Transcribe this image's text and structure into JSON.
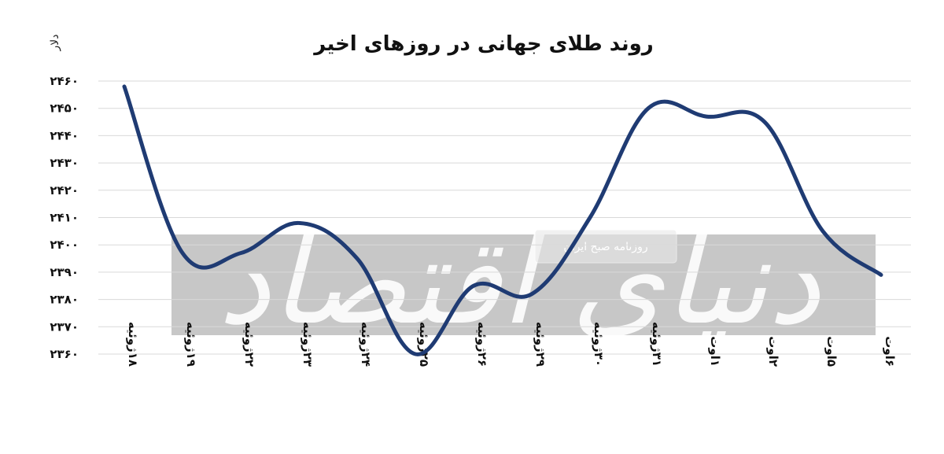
{
  "chart_data": {
    "type": "line",
    "title": "روند طلای جهانی در روزهای اخیر",
    "ylabel": "دلار",
    "xlabel": "",
    "ylim": [
      2360,
      2460
    ],
    "yticks": [
      "۲۳۶۰",
      "۲۳۷۰",
      "۲۳۸۰",
      "۲۳۹۰",
      "۲۴۰۰",
      "۲۴۱۰",
      "۲۴۲۰",
      "۲۴۳۰",
      "۲۴۴۰",
      "۲۴۵۰",
      "۲۴۶۰"
    ],
    "ytick_values": [
      2360,
      2370,
      2380,
      2390,
      2400,
      2410,
      2420,
      2430,
      2440,
      2450,
      2460
    ],
    "grid": true,
    "legend": "none",
    "categories": [
      "۱۸ژوئیه",
      "۱۹ژوئیه",
      "۲۲ژوئیه",
      "۲۳ژوئیه",
      "۲۴ژوئیه",
      "۲۵ژوئیه",
      "۲۶ژوئیه",
      "۲۹ژوئیه",
      "۳۰ژوئیه",
      "۳۱ژوئیه",
      "۱اوت",
      "۲اوت",
      "۵اوت",
      "۶اوت"
    ],
    "values": [
      2458,
      2397,
      2397,
      2408,
      2395,
      2360,
      2385,
      2382,
      2410,
      2450,
      2447,
      2445,
      2405,
      2389
    ],
    "series_color": "#1f3b73"
  },
  "watermark": {
    "badge_text": "روزنامه صبح ایران",
    "logo_text": "دنیای اقتصاد"
  }
}
